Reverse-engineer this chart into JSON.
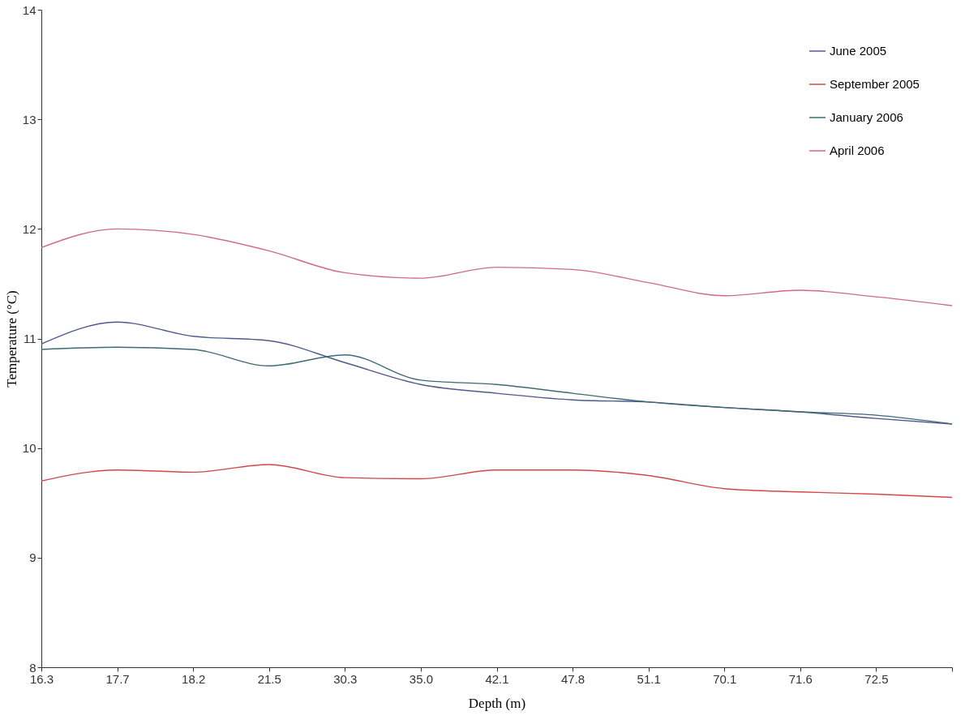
{
  "chart_data": {
    "type": "line",
    "xlabel": "Depth (m)",
    "ylabel": "Temperature (°C)",
    "categories": [
      "16.3",
      "17.7",
      "18.2",
      "21.5",
      "30.3",
      "35.0",
      "42.1",
      "47.8",
      "51.1",
      "70.1",
      "71.6",
      "72.5",
      null
    ],
    "series": [
      {
        "name": "June 2005",
        "color": "#4f5a8c",
        "values": [
          10.95,
          11.15,
          11.02,
          10.98,
          10.78,
          10.58,
          10.5,
          10.44,
          10.42,
          10.37,
          10.33,
          10.27,
          10.22
        ]
      },
      {
        "name": "September 2005",
        "color": "#d04848",
        "values": [
          9.7,
          9.8,
          9.78,
          9.85,
          9.73,
          9.72,
          9.8,
          9.8,
          9.75,
          9.63,
          9.6,
          9.58,
          9.55
        ]
      },
      {
        "name": "January 2006",
        "color": "#3d6b73",
        "values": [
          10.9,
          10.92,
          10.9,
          10.75,
          10.85,
          10.62,
          10.58,
          10.5,
          10.42,
          10.37,
          10.33,
          10.3,
          10.22
        ]
      },
      {
        "name": "April 2006",
        "color": "#d06a86",
        "values": [
          11.83,
          12.0,
          11.95,
          11.8,
          11.6,
          11.55,
          11.65,
          11.63,
          11.51,
          11.39,
          11.44,
          11.38,
          11.3
        ]
      }
    ],
    "ylim": [
      8,
      14
    ],
    "yticks": [
      8,
      9,
      10,
      11,
      12,
      13,
      14
    ],
    "grid": false,
    "legend": "top right",
    "line_style": "solid"
  }
}
